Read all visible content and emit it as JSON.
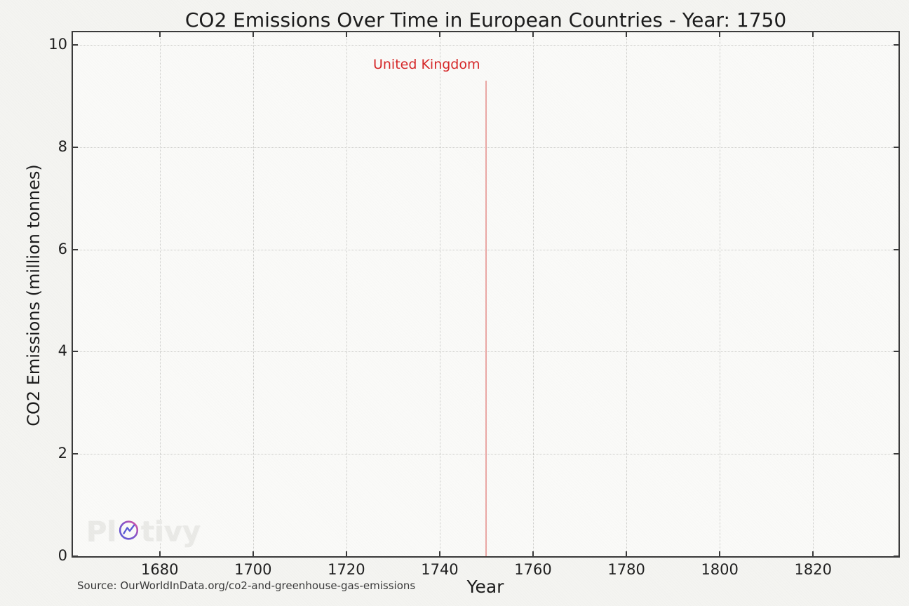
{
  "page": {
    "background_color": "#f4f4f1",
    "plot_background_color": "#fafaf8",
    "spine_color": "#3b3b3b",
    "grid_color": "#cbcbc8",
    "text_color": "#1c1c1c"
  },
  "chart_data": {
    "type": "bar",
    "title": "CO2 Emissions Over Time in European Countries - Year: 1750",
    "xlabel": "Year",
    "ylabel": "CO2 Emissions (million tonnes)",
    "current_year_frame": 1750,
    "xlim": [
      1661.4,
      1838.3
    ],
    "ylim": [
      0,
      10.25
    ],
    "x_ticks": [
      1680,
      1700,
      1720,
      1740,
      1760,
      1780,
      1800,
      1820
    ],
    "y_ticks": [
      0,
      2,
      4,
      6,
      8,
      10
    ],
    "grid": {
      "style": "dotted",
      "axes": "both",
      "color": "#cbcbc8"
    },
    "legend_position": "none",
    "tick_style": {
      "direction": "in",
      "sides": [
        "left",
        "right",
        "top",
        "bottom"
      ]
    },
    "series": [
      {
        "name": "United Kingdom",
        "label_color": "#d62728",
        "bar_color": "#eaa8a5",
        "x": [
          1750
        ],
        "values": [
          9.3
        ]
      }
    ],
    "annotations": [
      {
        "text": "United Kingdom",
        "x": 1750,
        "y": 9.3,
        "color": "#d62728"
      }
    ]
  },
  "footer": {
    "source": "Source: OurWorldInData.org/co2-and-greenhouse-gas-emissions"
  },
  "watermark": {
    "text": "Plotivy",
    "prefix": "Pl",
    "suffix": "tivy",
    "logo_colors": {
      "blue": "#5b5bd6",
      "pink": "#e0529f"
    }
  }
}
